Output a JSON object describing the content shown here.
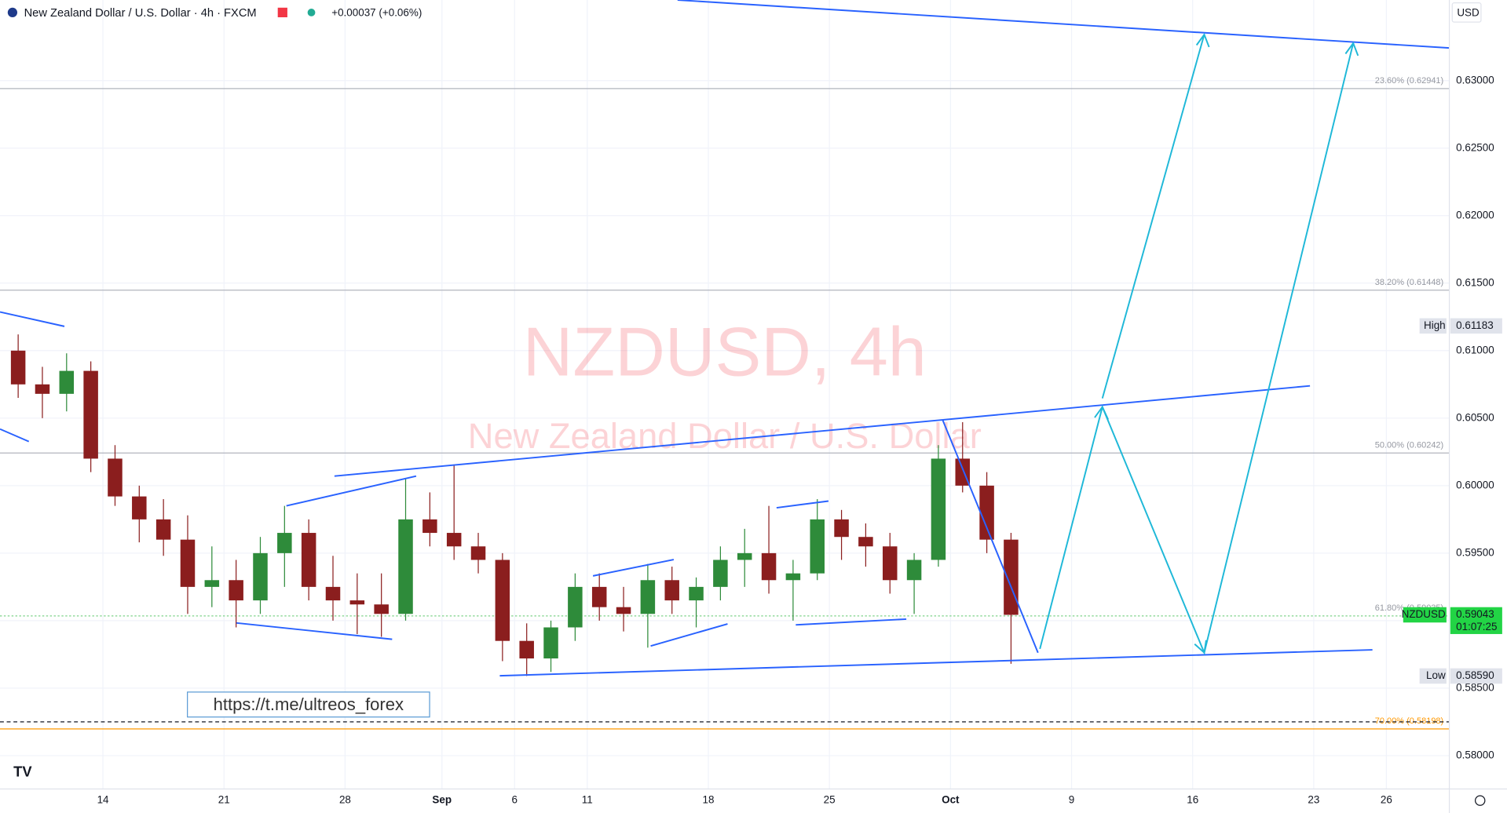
{
  "header": {
    "title": "New Zealand Dollar / U.S. Dollar · 4h · FXCM",
    "change": "+0.00037 (+0.06%)",
    "link": "https://t.me/ultreos_forex"
  },
  "chart_data": {
    "type": "candlestick",
    "title": "NZDUSD, 4h",
    "subtitle": "New Zealand Dollar / U.S. Dollar",
    "x": [
      -3.5,
      -2.5,
      -1.5,
      -0.5,
      0.5,
      1.5,
      2.5,
      3.5,
      4.5,
      5.5,
      6.5,
      7.5,
      8.5,
      9.5,
      10.5,
      11.5,
      12.5,
      13.5,
      14.5,
      15.5,
      16.5,
      17.5,
      18.5,
      19.5,
      20.5,
      21.5,
      22.5,
      23.5,
      24.5,
      25.5,
      26.5,
      27.5,
      28.5,
      29.5,
      30.5,
      31.5,
      32.5,
      33.5,
      34.5,
      35.5,
      36.5,
      37.5
    ],
    "open": [
      0.61,
      0.6075,
      0.6068,
      0.6085,
      0.602,
      0.5992,
      0.5975,
      0.596,
      0.5925,
      0.593,
      0.5915,
      0.595,
      0.5965,
      0.5925,
      0.5915,
      0.5912,
      0.5905,
      0.5975,
      0.5965,
      0.5955,
      0.5945,
      0.5885,
      0.5872,
      0.5895,
      0.5925,
      0.591,
      0.5905,
      0.593,
      0.5915,
      0.5925,
      0.5945,
      0.595,
      0.593,
      0.5935,
      0.5975,
      0.5962,
      0.5955,
      0.593,
      0.5945,
      0.602,
      0.6,
      0.596
    ],
    "high": [
      0.6112,
      0.6088,
      0.6098,
      0.6092,
      0.603,
      0.6,
      0.599,
      0.5978,
      0.5955,
      0.5945,
      0.5962,
      0.5985,
      0.5975,
      0.5948,
      0.5935,
      0.5935,
      0.6005,
      0.5995,
      0.6015,
      0.5965,
      0.595,
      0.5898,
      0.59,
      0.5935,
      0.5935,
      0.5925,
      0.5942,
      0.594,
      0.5932,
      0.5955,
      0.5968,
      0.5985,
      0.5945,
      0.599,
      0.5982,
      0.5972,
      0.5965,
      0.595,
      0.603,
      0.6047,
      0.601,
      0.5965
    ],
    "low": [
      0.6065,
      0.605,
      0.6055,
      0.601,
      0.5985,
      0.5958,
      0.5948,
      0.5905,
      0.591,
      0.5895,
      0.5905,
      0.5925,
      0.5915,
      0.59,
      0.589,
      0.5888,
      0.59,
      0.5955,
      0.5945,
      0.5935,
      0.587,
      0.5859,
      0.5862,
      0.5885,
      0.59,
      0.5892,
      0.588,
      0.5905,
      0.5895,
      0.5915,
      0.5925,
      0.592,
      0.59,
      0.593,
      0.5945,
      0.594,
      0.592,
      0.5905,
      0.594,
      0.5995,
      0.595,
      0.5868
    ],
    "close": [
      0.6075,
      0.6068,
      0.6085,
      0.602,
      0.5992,
      0.5975,
      0.596,
      0.5925,
      0.593,
      0.5915,
      0.595,
      0.5965,
      0.5925,
      0.5915,
      0.5912,
      0.5905,
      0.5975,
      0.5965,
      0.5955,
      0.5945,
      0.5885,
      0.5872,
      0.5895,
      0.5925,
      0.591,
      0.5905,
      0.593,
      0.5915,
      0.5925,
      0.5945,
      0.595,
      0.593,
      0.5935,
      0.5975,
      0.5962,
      0.5955,
      0.593,
      0.5945,
      0.602,
      0.6,
      0.596,
      0.59043
    ],
    "up_color": "#2e8b3a",
    "down_color": "#8b1e1e",
    "xlim": [
      -4.25,
      55.6
    ],
    "xticks": [
      {
        "value": 0,
        "label": "14"
      },
      {
        "value": 5,
        "label": "21"
      },
      {
        "value": 10,
        "label": "28"
      },
      {
        "value": 14,
        "label": "Sep"
      },
      {
        "value": 17,
        "label": "6"
      },
      {
        "value": 20,
        "label": "11"
      },
      {
        "value": 25,
        "label": "18"
      },
      {
        "value": 30,
        "label": "25"
      },
      {
        "value": 35,
        "label": "Oct"
      },
      {
        "value": 40,
        "label": "9"
      },
      {
        "value": 45,
        "label": "16"
      },
      {
        "value": 50,
        "label": "23"
      },
      {
        "value": 53,
        "label": "26"
      }
    ],
    "ylim": [
      0.57753,
      0.63597
    ],
    "yticks": [
      {
        "value": 0.58,
        "label": "0.58000"
      },
      {
        "value": 0.585,
        "label": "0.58500"
      },
      {
        "value": 0.59,
        "label": "0.59000"
      },
      {
        "value": 0.595,
        "label": "0.59500"
      },
      {
        "value": 0.6,
        "label": "0.60000"
      },
      {
        "value": 0.605,
        "label": "0.60500"
      },
      {
        "value": 0.61,
        "label": "0.61000"
      },
      {
        "value": 0.615,
        "label": "0.61500"
      },
      {
        "value": 0.62,
        "label": "0.62000"
      },
      {
        "value": 0.625,
        "label": "0.62500"
      },
      {
        "value": 0.63,
        "label": "0.63000"
      }
    ],
    "grid": true,
    "fib_levels": [
      {
        "value": 0.62941,
        "label": "23.60% (0.62941)",
        "color": "#b2b5be"
      },
      {
        "value": 0.61448,
        "label": "38.20% (0.61448)",
        "color": "#b2b5be"
      },
      {
        "value": 0.60242,
        "label": "50.00% (0.60242)",
        "color": "#b2b5be"
      },
      {
        "value": 0.59035,
        "label": "61.80% (0.59035)",
        "color": "#7fd38a"
      },
      {
        "value": 0.58198,
        "label": "70.00% (0.58198)",
        "color": "#ff9800"
      }
    ],
    "dashed_line": 0.5825,
    "currency": "USD",
    "price_tags": [
      {
        "name": "High",
        "value": 0.61183,
        "text": "0.61183",
        "color": "#e0e3eb"
      },
      {
        "name": "NZDUSD",
        "value": 0.59043,
        "text": "0.59043",
        "countdown": "01:07:25",
        "color": "#22d445"
      },
      {
        "name": "Low",
        "value": 0.5859,
        "text": "0.58590",
        "color": "#e0e3eb"
      }
    ]
  }
}
